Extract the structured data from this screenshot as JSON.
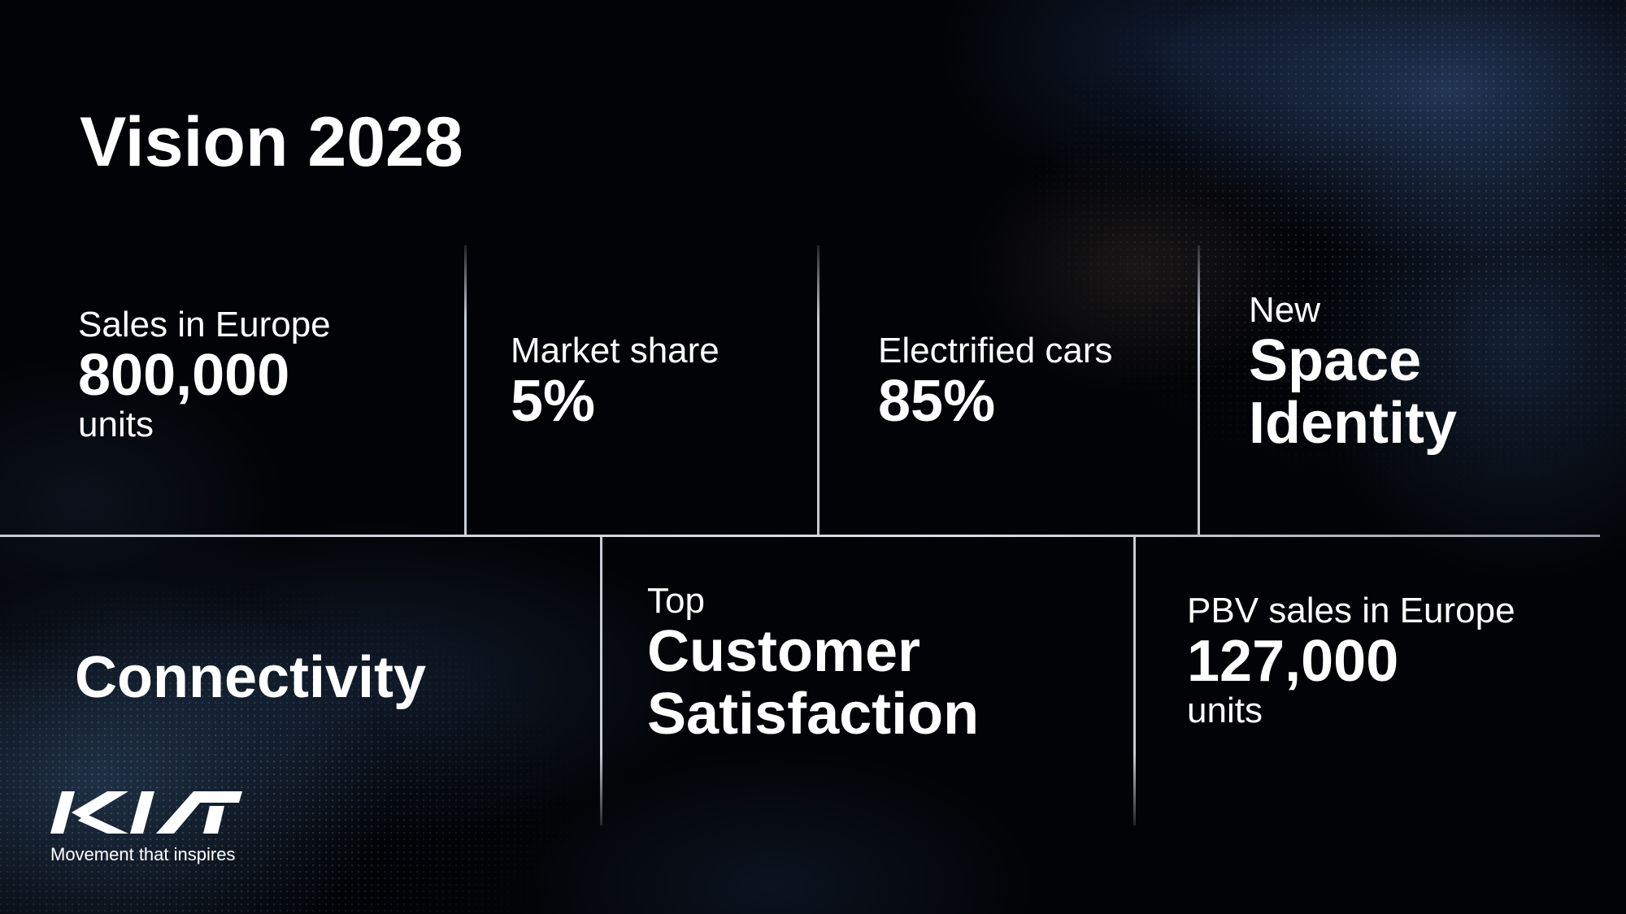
{
  "title": "Vision 2028",
  "cells": {
    "sales": {
      "label": "Sales in Europe",
      "value": "800,000",
      "unit": "units"
    },
    "market_share": {
      "label": "Market share",
      "value": "5%"
    },
    "electrified": {
      "label": "Electrified cars",
      "value": "85%"
    },
    "space": {
      "label": "New",
      "line1": "Space",
      "line2": "Identity"
    },
    "connectivity": {
      "value": "Connectivity"
    },
    "customer": {
      "label": "Top",
      "line1": "Customer",
      "line2": "Satisfaction"
    },
    "pbv": {
      "label": "PBV sales in Europe",
      "value": "127,000",
      "unit": "units"
    }
  },
  "brand": {
    "logo": "KIA",
    "tagline": "Movement that inspires"
  }
}
